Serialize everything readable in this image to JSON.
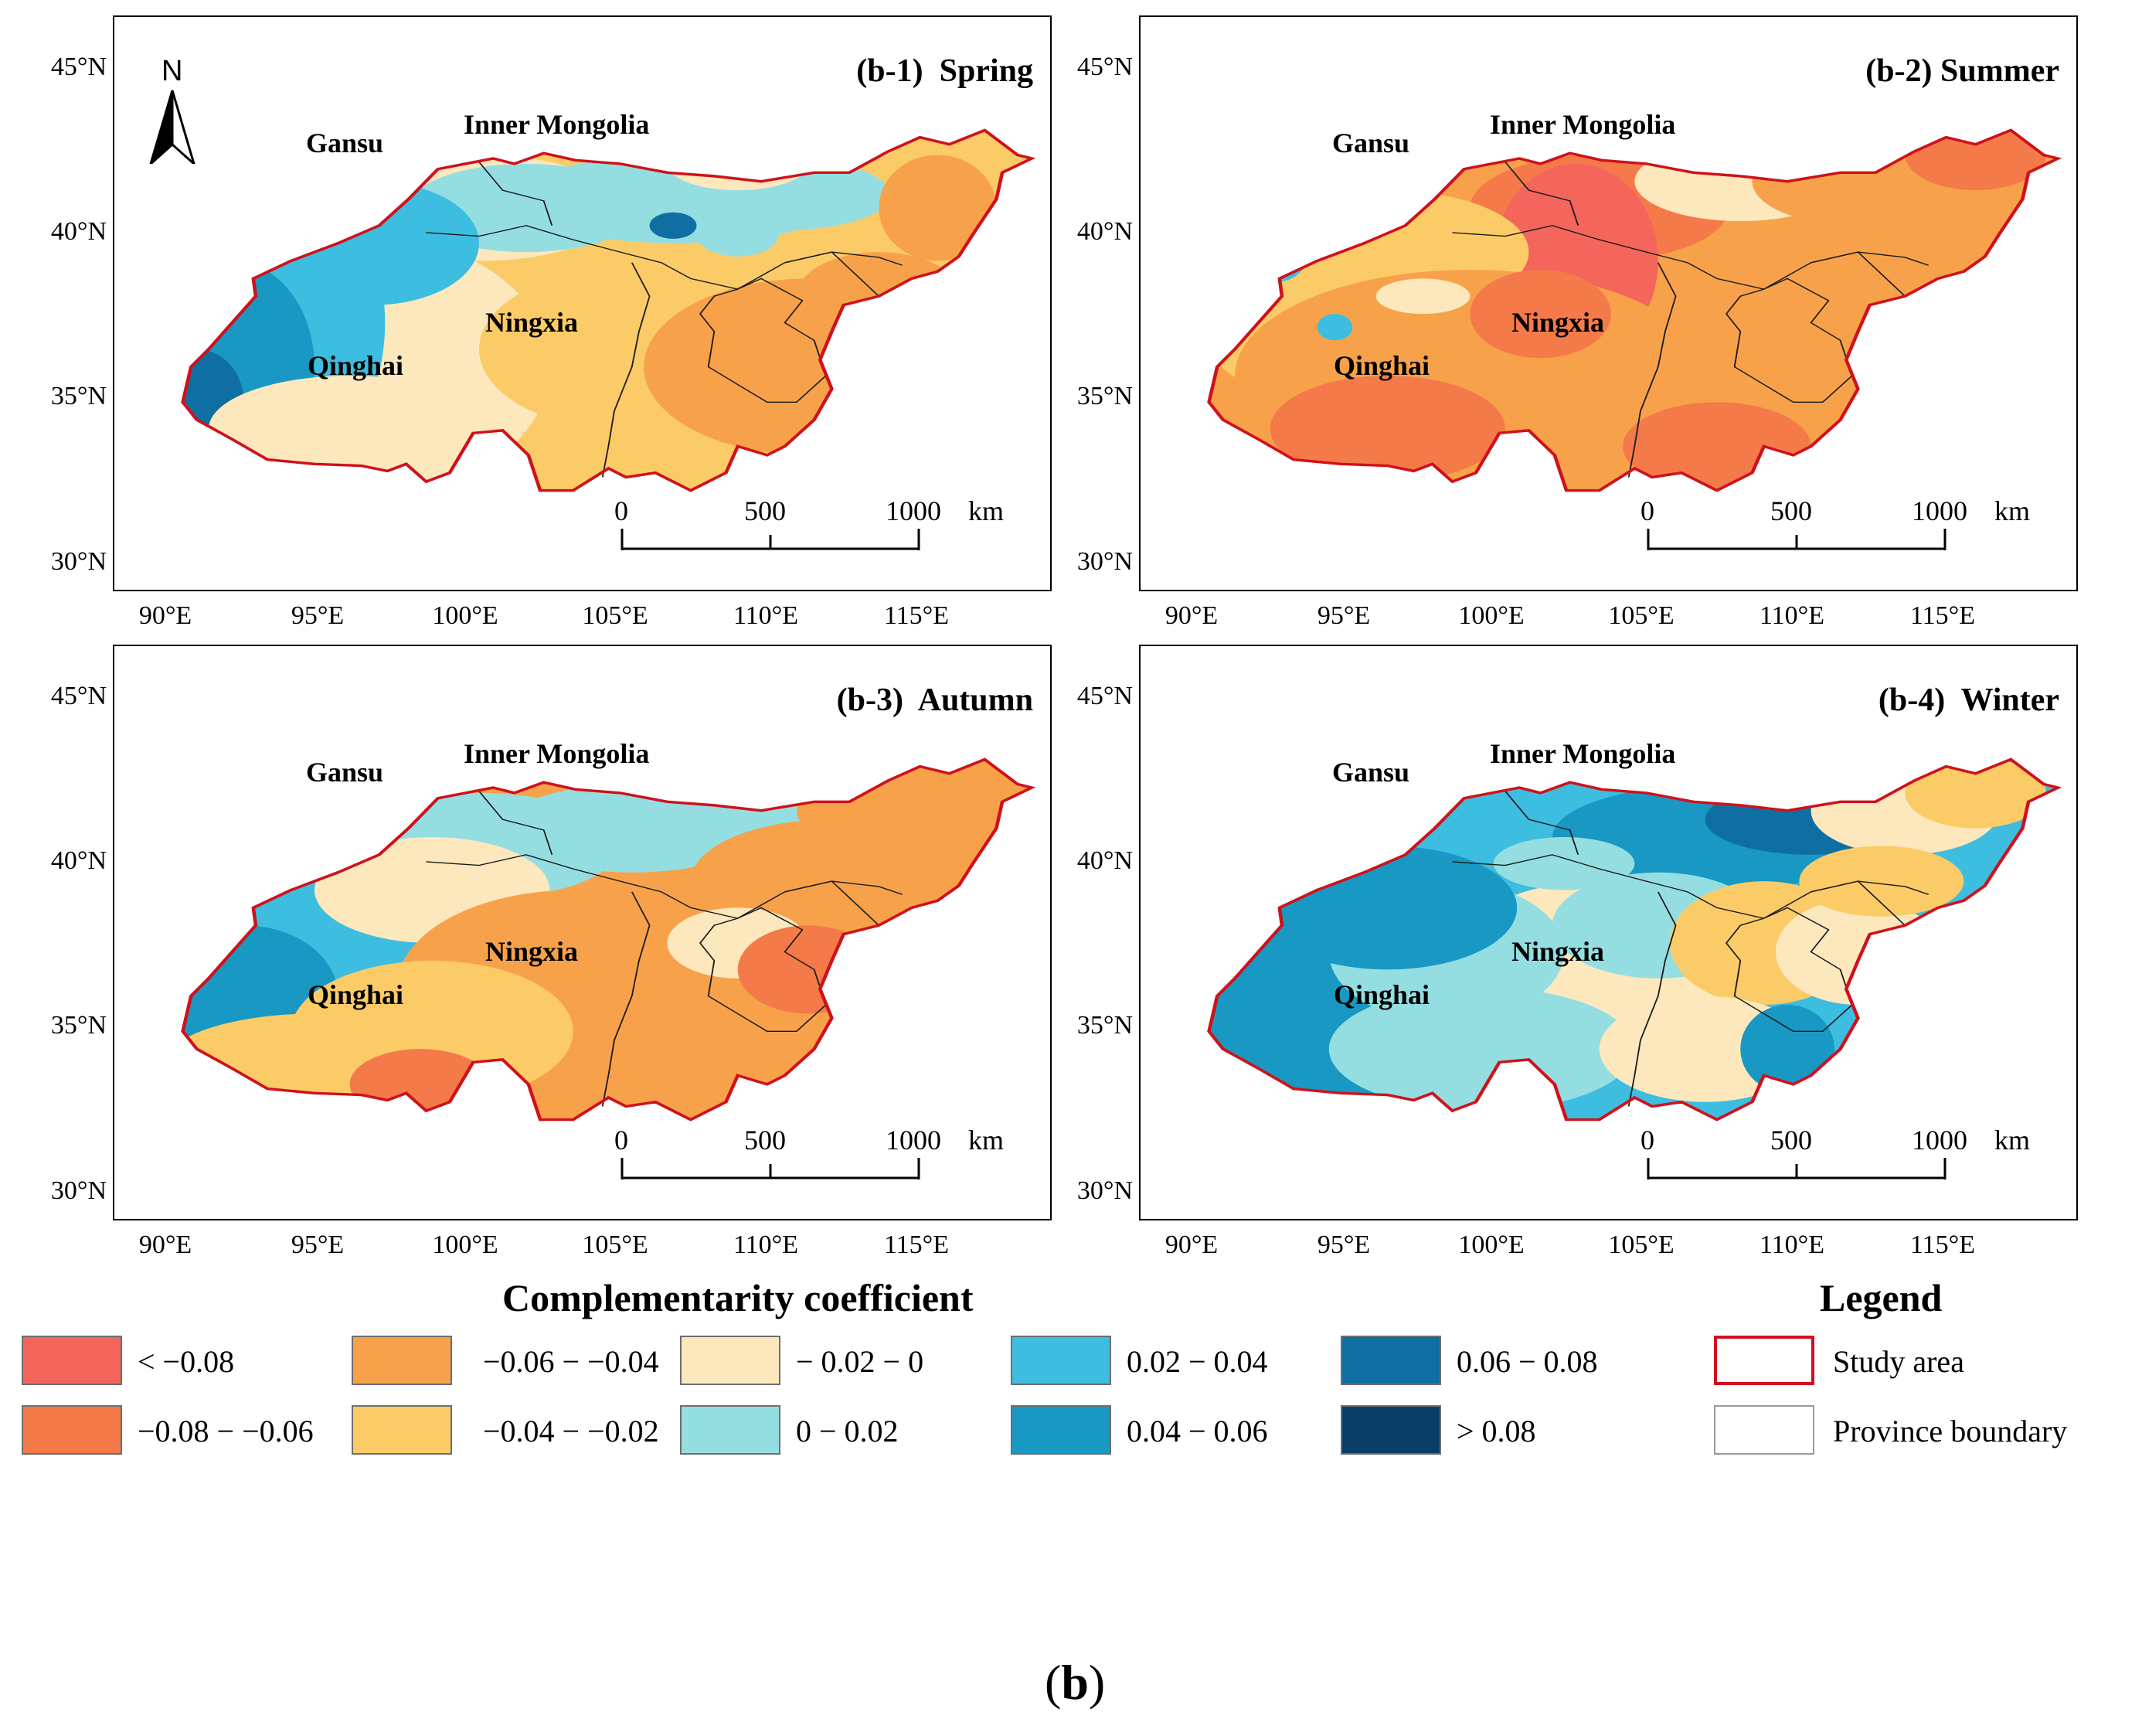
{
  "panels": [
    {
      "id": "b-1",
      "title": "(b-1)  Spring",
      "season": "spring"
    },
    {
      "id": "b-2",
      "title": "(b-2) Summer",
      "season": "summer"
    },
    {
      "id": "b-3",
      "title": "(b-3)  Autumn",
      "season": "autumn"
    },
    {
      "id": "b-4",
      "title": "(b-4)  Winter",
      "season": "winter"
    }
  ],
  "province_labels": [
    "Gansu",
    "Inner Mongolia",
    "Ningxia",
    "Qinghai"
  ],
  "y_ticks": [
    "45°N",
    "40°N",
    "35°N",
    "30°N"
  ],
  "x_ticks": [
    "90°E",
    "95°E",
    "100°E",
    "105°E",
    "110°E",
    "115°E"
  ],
  "scalebar": {
    "labels": [
      "0",
      "500",
      "1000"
    ],
    "unit": "km"
  },
  "north_arrow": "N",
  "colorbar_title": "Complementarity coefficient",
  "classes": [
    {
      "label": "< −0.08",
      "color": "#f4655b"
    },
    {
      "label": "−0.08 − −0.06",
      "color": "#f47a4a"
    },
    {
      "label": "−0.06 − −0.04",
      "color": "#f7a24a"
    },
    {
      "label": "−0.04 − −0.02",
      "color": "#fbcb68"
    },
    {
      "label": "− 0.02 − 0",
      "color": "#fde8bd"
    },
    {
      "label": "0 − 0.02",
      "color": "#94dee2"
    },
    {
      "label": "0.02 − 0.04",
      "color": "#3dbde0"
    },
    {
      "label": "0.04 − 0.06",
      "color": "#1898c2"
    },
    {
      "label": "0.06 − 0.08",
      "color": "#0f6fa3"
    },
    {
      "label": "> 0.08",
      "color": "#083e68"
    }
  ],
  "legend": {
    "title": "Legend",
    "study_area": "Study area",
    "study_area_color": "#d0111b",
    "province_boundary": "Province boundary"
  },
  "caption": "(b)"
}
